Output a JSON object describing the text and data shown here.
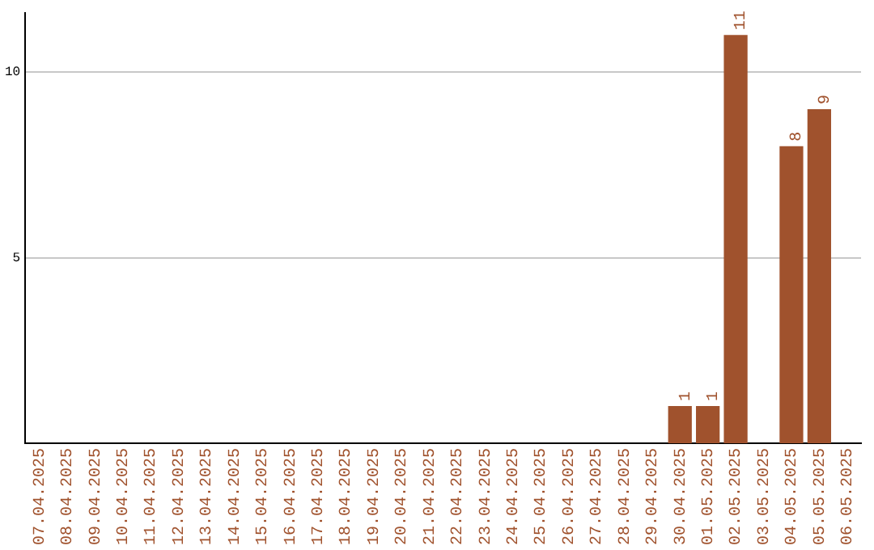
{
  "chart_data": {
    "type": "bar",
    "categories": [
      "07.04.2025",
      "08.04.2025",
      "09.04.2025",
      "10.04.2025",
      "11.04.2025",
      "12.04.2025",
      "13.04.2025",
      "14.04.2025",
      "15.04.2025",
      "16.04.2025",
      "17.04.2025",
      "18.04.2025",
      "19.04.2025",
      "20.04.2025",
      "21.04.2025",
      "22.04.2025",
      "23.04.2025",
      "24.04.2025",
      "25.04.2025",
      "26.04.2025",
      "27.04.2025",
      "28.04.2025",
      "29.04.2025",
      "30.04.2025",
      "01.05.2025",
      "02.05.2025",
      "03.05.2025",
      "04.05.2025",
      "05.05.2025",
      "06.05.2025"
    ],
    "values": [
      null,
      null,
      null,
      null,
      null,
      null,
      null,
      null,
      null,
      null,
      null,
      null,
      null,
      null,
      null,
      null,
      null,
      null,
      null,
      null,
      null,
      null,
      null,
      1,
      1,
      11,
      null,
      8,
      9,
      null
    ],
    "color": "#a0522d",
    "ylim": [
      0,
      11.6
    ],
    "yticks": [
      5,
      10
    ],
    "grid": "y",
    "data_labels": true,
    "legend": false
  }
}
